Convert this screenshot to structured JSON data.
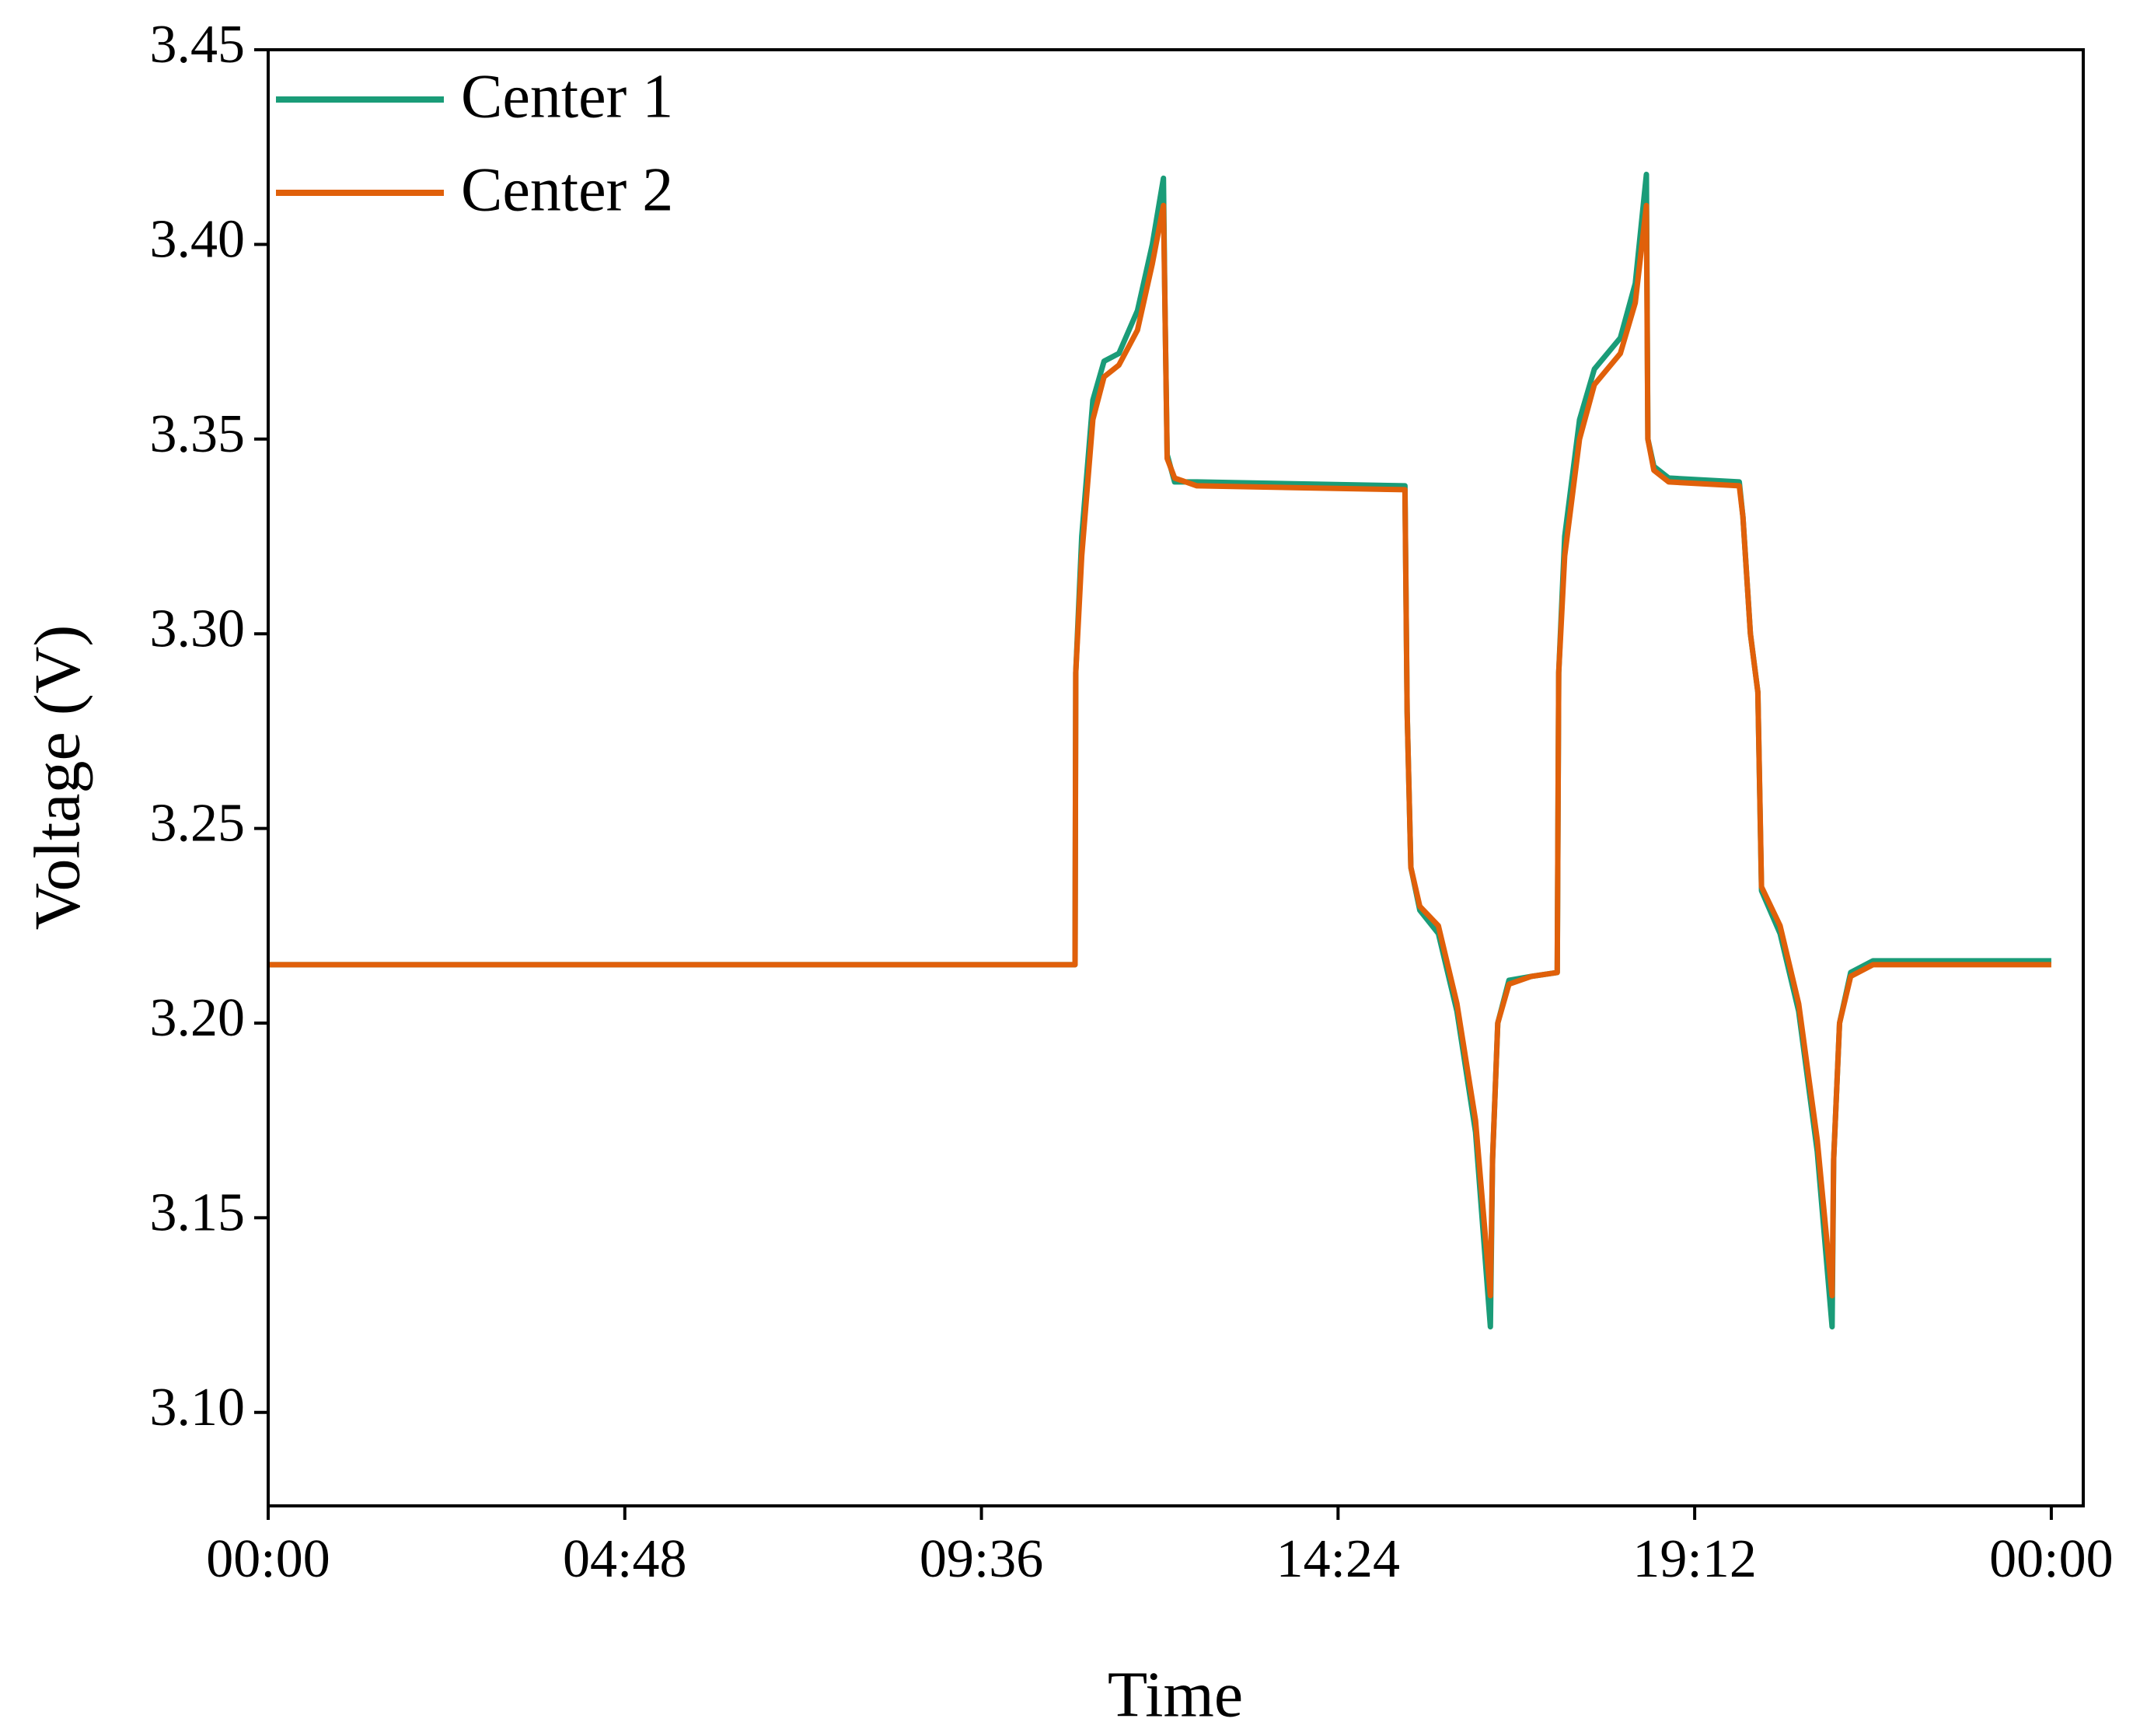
{
  "chart_data": {
    "type": "line",
    "x_label": "Time",
    "y_label": "Voltage (V)",
    "x": [
      0,
      10.86,
      10.87,
      10.95,
      11.1,
      11.25,
      11.45,
      11.7,
      11.9,
      12.05,
      12.07,
      12.1,
      12.2,
      12.5,
      15.3,
      15.33,
      15.38,
      15.5,
      15.75,
      16.0,
      16.25,
      16.45,
      16.48,
      16.55,
      16.7,
      17.0,
      17.35,
      17.37,
      17.45,
      17.65,
      17.85,
      18.2,
      18.4,
      18.55,
      18.57,
      18.65,
      18.85,
      19.8,
      19.85,
      19.95,
      20.05,
      20.1,
      20.35,
      20.6,
      20.85,
      21.05,
      21.07,
      21.15,
      21.3,
      21.6,
      24.0
    ],
    "series": [
      {
        "name": "Center 1",
        "color": "#1a9c78",
        "values": [
          3.215,
          3.215,
          3.29,
          3.325,
          3.36,
          3.37,
          3.372,
          3.383,
          3.4,
          3.417,
          3.385,
          3.346,
          3.339,
          3.339,
          3.338,
          3.28,
          3.24,
          3.229,
          3.223,
          3.203,
          3.172,
          3.122,
          3.165,
          3.2,
          3.211,
          3.212,
          3.213,
          3.29,
          3.325,
          3.355,
          3.368,
          3.376,
          3.39,
          3.418,
          3.35,
          3.343,
          3.34,
          3.339,
          3.33,
          3.3,
          3.285,
          3.234,
          3.223,
          3.203,
          3.167,
          3.122,
          3.165,
          3.2,
          3.213,
          3.216,
          3.216
        ]
      },
      {
        "name": "Center 2",
        "color": "#e0600a",
        "values": [
          3.215,
          3.215,
          3.29,
          3.32,
          3.355,
          3.366,
          3.369,
          3.378,
          3.395,
          3.41,
          3.385,
          3.345,
          3.34,
          3.338,
          3.337,
          3.28,
          3.24,
          3.23,
          3.225,
          3.205,
          3.175,
          3.13,
          3.165,
          3.2,
          3.21,
          3.212,
          3.213,
          3.29,
          3.32,
          3.35,
          3.364,
          3.372,
          3.385,
          3.41,
          3.35,
          3.342,
          3.339,
          3.338,
          3.33,
          3.3,
          3.285,
          3.235,
          3.225,
          3.205,
          3.17,
          3.13,
          3.165,
          3.2,
          3.212,
          3.215,
          3.215
        ]
      }
    ],
    "xlim": [
      0,
      24.43
    ],
    "xticks": [
      {
        "value": 0,
        "label": "00:00"
      },
      {
        "value": 4.8,
        "label": "04:48"
      },
      {
        "value": 9.6,
        "label": "09:36"
      },
      {
        "value": 14.4,
        "label": "14:24"
      },
      {
        "value": 19.2,
        "label": "19:12"
      },
      {
        "value": 24,
        "label": "00:00"
      }
    ],
    "ylim": [
      3.076,
      3.45
    ],
    "yticks": [
      {
        "value": 3.1,
        "label": "3.10"
      },
      {
        "value": 3.15,
        "label": "3.15"
      },
      {
        "value": 3.2,
        "label": "3.20"
      },
      {
        "value": 3.25,
        "label": "3.25"
      },
      {
        "value": 3.3,
        "label": "3.30"
      },
      {
        "value": 3.35,
        "label": "3.35"
      },
      {
        "value": 3.4,
        "label": "3.40"
      },
      {
        "value": 3.45,
        "label": "3.45"
      }
    ],
    "grid": false,
    "legend": "upper left"
  }
}
